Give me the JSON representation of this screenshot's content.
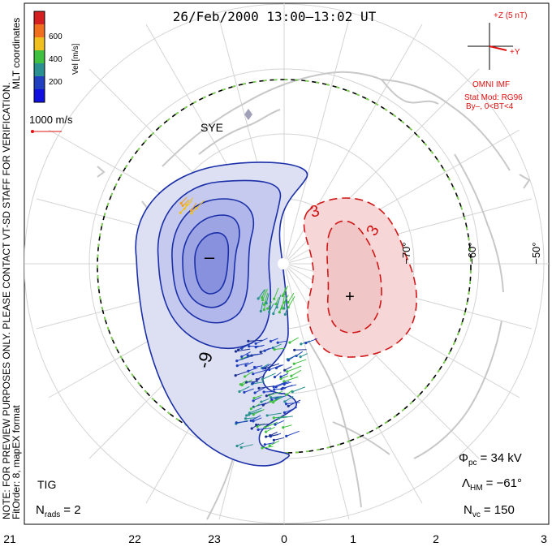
{
  "title": "26/Feb/2000 13:00–13:02 UT",
  "side_notes": {
    "verification": "NOTE: FOR PREVIEW PURPOSES ONLY. PLEASE CONTACT VT-SD STAFF FOR VERIFICATION.",
    "fit": "FitOrder: 8, mapEX format",
    "coords": "MLT coordinates"
  },
  "colorbar": {
    "label": "Vel [m/s]",
    "ticks": [
      "600",
      "400",
      "200"
    ],
    "colors": [
      "#d42020",
      "#f07020",
      "#f0c020",
      "#40c040",
      "#2a9090",
      "#2040c0",
      "#1010e0"
    ]
  },
  "vector_scale": "1000 m/s",
  "imf": {
    "plus_z": "+Z (5 nT)",
    "plus_y": "+Y",
    "omni": "OMNI IMF",
    "stat_mod": "Stat Mod: RG96",
    "condition": "By–, 0<BT<4"
  },
  "stations": [
    "SYE",
    "TIG"
  ],
  "latitude_labels": [
    "−70°",
    "−60°",
    "−50°"
  ],
  "contour_labels": [
    "-9",
    "3",
    "3"
  ],
  "cell_markers": {
    "min": "–",
    "max": "+"
  },
  "stats": {
    "phi_pc": "Φ",
    "phi_pc_sub": "pc",
    "phi_pc_value": "= 34 kV",
    "lambda_hm": "Λ",
    "lambda_hm_sub": "HM",
    "lambda_hm_value": "= −61°",
    "n_vc": "N",
    "n_vc_sub": "vc",
    "n_vc_value": "= 150",
    "n_rads": "N",
    "n_rads_sub": "rads",
    "n_rads_value": "= 2"
  },
  "mlt_axis": [
    "21",
    "22",
    "23",
    "0",
    "1",
    "2",
    "3"
  ],
  "colors": {
    "negative_cell": "#1a2fa8",
    "positive_cell": "#d01818",
    "boundary_dash": "#7ad84a",
    "coast": "#c8c8c8",
    "grid": "#d4d4d4"
  }
}
